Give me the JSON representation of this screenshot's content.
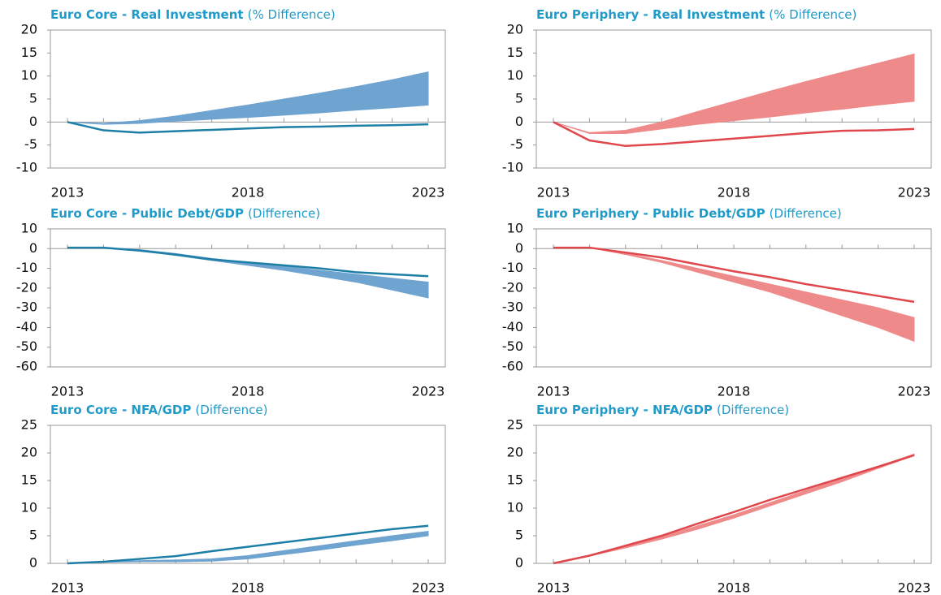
{
  "chart_data": [
    {
      "type": "band-line",
      "title": "Euro Core - Real Investment",
      "subtitle": "(% Difference)",
      "x": [
        2013,
        2014,
        2015,
        2016,
        2017,
        2018,
        2019,
        2020,
        2021,
        2022,
        2023
      ],
      "xlim": [
        2013,
        2023
      ],
      "xticks": [
        2013,
        2018,
        2023
      ],
      "ylim": [
        -10,
        20
      ],
      "yticks": [
        -10,
        -5,
        0,
        5,
        10,
        15,
        20
      ],
      "series": [
        {
          "type": "band",
          "color": "#6fa3d0",
          "lower": [
            0,
            -0.5,
            -0.3,
            0.2,
            0.6,
            1.0,
            1.5,
            2.0,
            2.6,
            3.1,
            3.7
          ],
          "upper": [
            0,
            -0.3,
            0.3,
            1.3,
            2.5,
            3.7,
            5.0,
            6.3,
            7.7,
            9.2,
            10.9
          ]
        },
        {
          "type": "line",
          "color": "#1e7fa6",
          "values": [
            0,
            -1.8,
            -2.3,
            -2.0,
            -1.7,
            -1.4,
            -1.1,
            -1.0,
            -0.8,
            -0.7,
            -0.5
          ]
        }
      ]
    },
    {
      "type": "band-line",
      "title": "Euro Periphery - Real Investment",
      "subtitle": "(% Difference)",
      "x": [
        2013,
        2014,
        2015,
        2016,
        2017,
        2018,
        2019,
        2020,
        2021,
        2022,
        2023
      ],
      "xlim": [
        2013,
        2023
      ],
      "xticks": [
        2013,
        2018,
        2023
      ],
      "ylim": [
        -10,
        20
      ],
      "yticks": [
        -10,
        -5,
        0,
        5,
        10,
        15,
        20
      ],
      "series": [
        {
          "type": "band",
          "color": "#ee8a8a",
          "lower": [
            0,
            -2.5,
            -2.5,
            -1.5,
            -0.5,
            0.3,
            1.1,
            2.0,
            2.8,
            3.7,
            4.5
          ],
          "upper": [
            0,
            -2.3,
            -1.8,
            0,
            2.3,
            4.5,
            6.7,
            8.8,
            10.8,
            12.8,
            14.8
          ]
        },
        {
          "type": "line",
          "color": "#e0474c",
          "values": [
            0,
            -4,
            -5.2,
            -4.8,
            -4.2,
            -3.6,
            -3.0,
            -2.4,
            -1.9,
            -1.8,
            -1.5
          ]
        }
      ]
    },
    {
      "type": "band-line",
      "title": "Euro Core - Public Debt/GDP",
      "subtitle": "(Difference)",
      "x": [
        2013,
        2014,
        2015,
        2016,
        2017,
        2018,
        2019,
        2020,
        2021,
        2022,
        2023
      ],
      "xlim": [
        2013,
        2023
      ],
      "xticks": [
        2013,
        2018,
        2023
      ],
      "ylim": [
        -60,
        10
      ],
      "yticks": [
        -60,
        -50,
        -40,
        -30,
        -20,
        -10,
        0,
        10
      ],
      "series": [
        {
          "type": "band",
          "color": "#6fa3d0",
          "lower": [
            0.5,
            0.5,
            -1,
            -3.5,
            -6,
            -8.5,
            -11,
            -14,
            -17,
            -21,
            -25
          ],
          "upper": [
            0.5,
            0.5,
            -0.5,
            -2.5,
            -5,
            -7,
            -9,
            -11,
            -13,
            -15,
            -17
          ]
        },
        {
          "type": "line",
          "color": "#1e7fa6",
          "values": [
            0.5,
            0.5,
            -1,
            -3,
            -5.5,
            -7,
            -8.5,
            -10,
            -12,
            -13,
            -14
          ]
        }
      ]
    },
    {
      "type": "band-line",
      "title": "Euro Periphery - Public Debt/GDP",
      "subtitle": "(Difference)",
      "x": [
        2013,
        2014,
        2015,
        2016,
        2017,
        2018,
        2019,
        2020,
        2021,
        2022,
        2023
      ],
      "xlim": [
        2013,
        2023
      ],
      "xticks": [
        2013,
        2018,
        2023
      ],
      "ylim": [
        -60,
        10
      ],
      "yticks": [
        -60,
        -50,
        -40,
        -30,
        -20,
        -10,
        0,
        10
      ],
      "series": [
        {
          "type": "band",
          "color": "#ee8a8a",
          "lower": [
            0.5,
            0.5,
            -3,
            -7,
            -12,
            -17,
            -22,
            -28,
            -34,
            -40,
            -47
          ],
          "upper": [
            0.5,
            0.5,
            -2.5,
            -6,
            -10,
            -14,
            -18,
            -22,
            -26,
            -30,
            -35
          ]
        },
        {
          "type": "line",
          "color": "#e0474c",
          "values": [
            0.5,
            0.5,
            -2,
            -4.5,
            -8,
            -11.5,
            -14.5,
            -18,
            -21,
            -24,
            -27
          ]
        }
      ]
    },
    {
      "type": "band-line",
      "title": "Euro Core - NFA/GDP",
      "subtitle": "(Difference)",
      "x": [
        2013,
        2014,
        2015,
        2016,
        2017,
        2018,
        2019,
        2020,
        2021,
        2022,
        2023
      ],
      "xlim": [
        2013,
        2023
      ],
      "xticks": [
        2013,
        2018,
        2023
      ],
      "ylim": [
        0,
        25
      ],
      "yticks": [
        0,
        5,
        10,
        15,
        20,
        25
      ],
      "series": [
        {
          "type": "band",
          "color": "#6fa3d0",
          "lower": [
            0,
            0.2,
            0.3,
            0.3,
            0.4,
            0.8,
            1.6,
            2.4,
            3.3,
            4.1,
            5.0
          ],
          "upper": [
            0,
            0.3,
            0.5,
            0.6,
            0.8,
            1.4,
            2.3,
            3.2,
            4.1,
            5.0,
            5.8
          ]
        },
        {
          "type": "line",
          "color": "#1e7fa6",
          "values": [
            0,
            0.3,
            0.8,
            1.3,
            2.2,
            3.0,
            3.8,
            4.6,
            5.4,
            6.2,
            6.8
          ]
        }
      ]
    },
    {
      "type": "band-line",
      "title": "Euro Periphery - NFA/GDP",
      "subtitle": "(Difference)",
      "x": [
        2013,
        2014,
        2015,
        2016,
        2017,
        2018,
        2019,
        2020,
        2021,
        2022,
        2023
      ],
      "xlim": [
        2013,
        2023
      ],
      "xticks": [
        2013,
        2018,
        2023
      ],
      "ylim": [
        0,
        25
      ],
      "yticks": [
        0,
        5,
        10,
        15,
        20,
        25
      ],
      "series": [
        {
          "type": "band",
          "color": "#ee8a8a",
          "lower": [
            0,
            1.3,
            2.8,
            4.4,
            6.2,
            8.2,
            10.4,
            12.6,
            14.8,
            17.2,
            19.5
          ],
          "upper": [
            0,
            1.4,
            3.0,
            4.8,
            6.8,
            8.8,
            11.0,
            13.2,
            15.3,
            17.5,
            19.8
          ]
        },
        {
          "type": "line",
          "color": "#e0474c",
          "values": [
            0,
            1.4,
            3.2,
            5.0,
            7.2,
            9.3,
            11.5,
            13.5,
            15.5,
            17.5,
            19.6
          ]
        }
      ]
    }
  ]
}
